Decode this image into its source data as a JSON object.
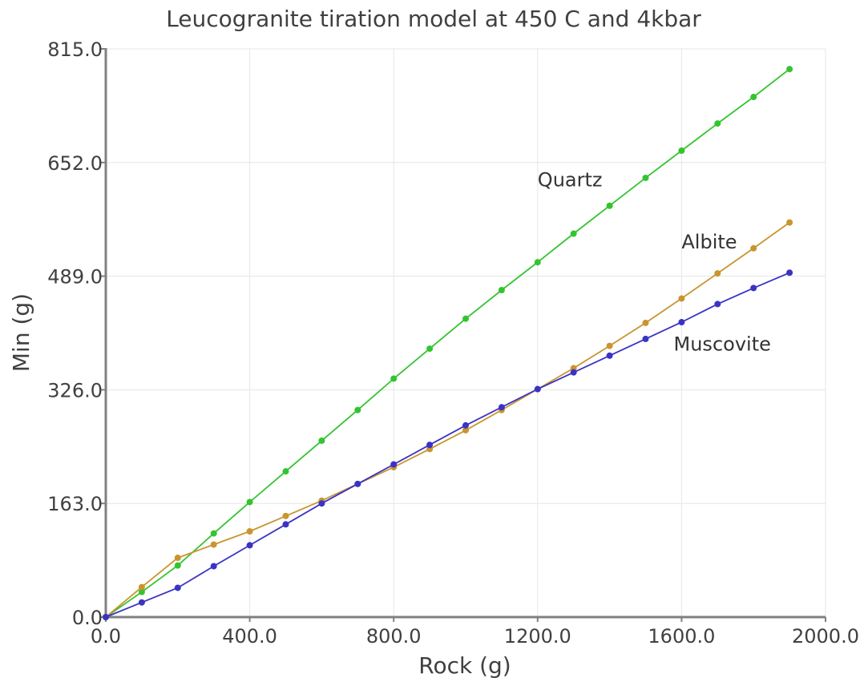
{
  "chart_data": {
    "type": "line",
    "title": "Leucogranite tiration model at 450 C and 4kbar",
    "xlabel": "Rock (g)",
    "ylabel": "Min (g)",
    "xlim": [
      0,
      2000
    ],
    "ylim": [
      0,
      815
    ],
    "grid": true,
    "x_ticks": [
      "0.0",
      "400.0",
      "800.0",
      "1200.0",
      "1600.0",
      "2000.0"
    ],
    "y_ticks": [
      "0.0",
      "163.0",
      "326.0",
      "489.0",
      "652.0",
      "815.0"
    ],
    "x": [
      0,
      100,
      200,
      300,
      400,
      500,
      600,
      700,
      800,
      900,
      1000,
      1100,
      1200,
      1300,
      1400,
      1500,
      1600,
      1700,
      1800,
      1900
    ],
    "series": [
      {
        "name": "Quartz",
        "color": "#33c42f",
        "values": [
          0,
          36,
          74,
          120,
          165,
          209,
          253,
          297,
          342,
          385,
          428,
          469,
          509,
          550,
          590,
          630,
          669,
          708,
          746,
          786
        ]
      },
      {
        "name": "Albite",
        "color": "#c9952f",
        "values": [
          0,
          43,
          85,
          104,
          123,
          145,
          167,
          191,
          215,
          241,
          268,
          297,
          327,
          357,
          389,
          422,
          457,
          493,
          529,
          566
        ]
      },
      {
        "name": "Muscovite",
        "color": "#3a33c4",
        "values": [
          0,
          21,
          42,
          73,
          103,
          133,
          163,
          191,
          219,
          247,
          275,
          301,
          327,
          351,
          375,
          399,
          423,
          449,
          472,
          494
        ]
      }
    ]
  }
}
